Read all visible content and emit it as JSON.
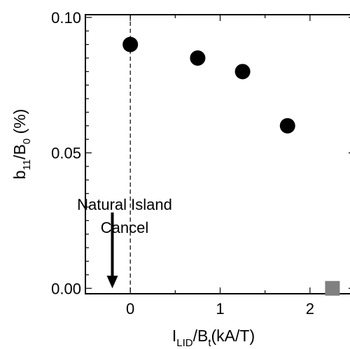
{
  "chart_data": {
    "type": "scatter",
    "title": "",
    "xlabel": {
      "main": "I",
      "sub": "LID",
      "sep": "/B",
      "sub2": "t",
      "unit": "(kA/T)"
    },
    "ylabel": {
      "main": "b",
      "sub": "11",
      "sep": "/B",
      "sub2": "0",
      "unit": " (%)"
    },
    "xlim": [
      -0.5,
      2.5
    ],
    "ylim": [
      -0.002,
      0.101
    ],
    "xticks": [
      0,
      1,
      2
    ],
    "xtick_labels": [
      "0",
      "1",
      "2"
    ],
    "yticks": [
      0.0,
      0.05,
      0.1
    ],
    "ytick_labels": [
      "0.00",
      "0.05",
      "0.10"
    ],
    "series": [
      {
        "marker": "circle",
        "color": "#000000",
        "x": [
          0.0,
          0.75,
          1.25,
          1.75
        ],
        "y": [
          0.09,
          0.085,
          0.08,
          0.06
        ]
      },
      {
        "marker": "square",
        "color": "#808080",
        "x": [
          2.25
        ],
        "y": [
          0.0
        ]
      }
    ],
    "reference_line": {
      "x": 0,
      "style": "dashed"
    },
    "annotation": {
      "lines": [
        "Natural Island",
        "Cancel"
      ],
      "arrow_x": -0.2,
      "arrow_y_from": 0.028,
      "arrow_y_to": 0.0
    },
    "grid": false
  }
}
